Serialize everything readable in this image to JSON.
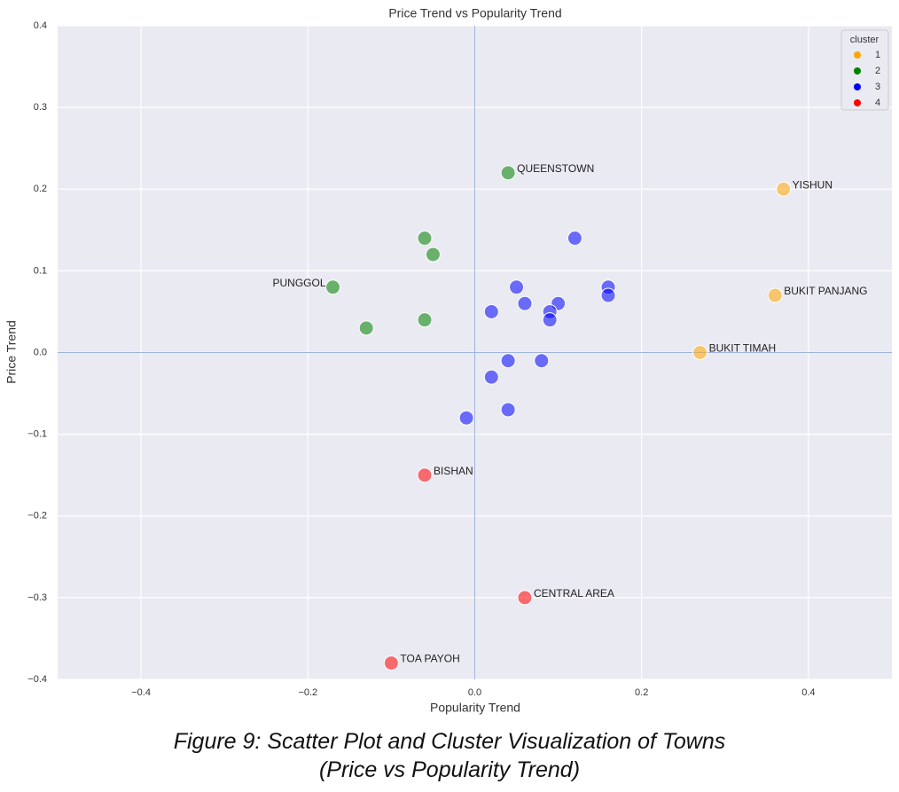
{
  "chart_data": {
    "type": "scatter",
    "title": "Price Trend vs Popularity Trend",
    "x_label": "Popularity Trend",
    "y_label": "Price Trend",
    "xlim": [
      -0.5,
      0.5
    ],
    "ylim": [
      -0.4,
      0.4
    ],
    "xticks": [
      {
        "value": -0.4,
        "label": "−0.4"
      },
      {
        "value": -0.2,
        "label": "−0.2"
      },
      {
        "value": 0,
        "label": "0.0"
      },
      0.2,
      0.4
    ],
    "yticks": [
      {
        "value": -0.4,
        "label": "−0.4"
      },
      {
        "value": -0.3,
        "label": "−0.3"
      },
      {
        "value": -0.2,
        "label": "−0.2"
      },
      {
        "value": -0.1,
        "label": "−0.1"
      },
      {
        "value": 0,
        "label": "0.0"
      },
      0.1,
      0.2,
      0.3,
      0.4
    ],
    "grid": true,
    "hline": 0,
    "vline": 0,
    "legend_title": "cluster",
    "legend_position": "upper right",
    "alpha": 0.55,
    "series": [
      {
        "name": "1",
        "color": "orange",
        "x": [
          0.37,
          0.36,
          0.27
        ],
        "values": [
          0.2,
          0.07,
          0.0
        ],
        "labels": [
          "YISHUN",
          "BUKIT PANJANG",
          "BUKIT TIMAH"
        ]
      },
      {
        "name": "2",
        "color": "green",
        "x": [
          0.04,
          -0.06,
          -0.05,
          -0.17,
          -0.13,
          -0.06
        ],
        "values": [
          0.22,
          0.14,
          0.12,
          0.08,
          0.03,
          0.04
        ],
        "labels": [
          "QUEENSTOWN",
          null,
          null,
          "PUNGGOL",
          null,
          null
        ]
      },
      {
        "name": "3",
        "color": "blue",
        "x": [
          0.12,
          0.05,
          0.16,
          0.16,
          0.06,
          0.1,
          0.09,
          0.02,
          0.09,
          0.04,
          0.08,
          0.02,
          0.04,
          -0.01
        ],
        "values": [
          0.14,
          0.08,
          0.08,
          0.07,
          0.06,
          0.06,
          0.05,
          0.05,
          0.04,
          -0.01,
          -0.01,
          -0.03,
          -0.07,
          -0.08
        ],
        "labels": [
          null,
          null,
          null,
          null,
          null,
          null,
          null,
          null,
          null,
          null,
          null,
          null,
          null,
          null
        ]
      },
      {
        "name": "4",
        "color": "red",
        "x": [
          -0.06,
          0.06,
          -0.1
        ],
        "values": [
          -0.15,
          -0.3,
          -0.38
        ],
        "labels": [
          "BISHAN",
          "CENTRAL AREA",
          "TOA PAYOH"
        ]
      }
    ]
  },
  "caption": [
    "Figure 9: Scatter Plot and Cluster Visualization of Towns",
    "(Price vs Popularity Trend)"
  ]
}
